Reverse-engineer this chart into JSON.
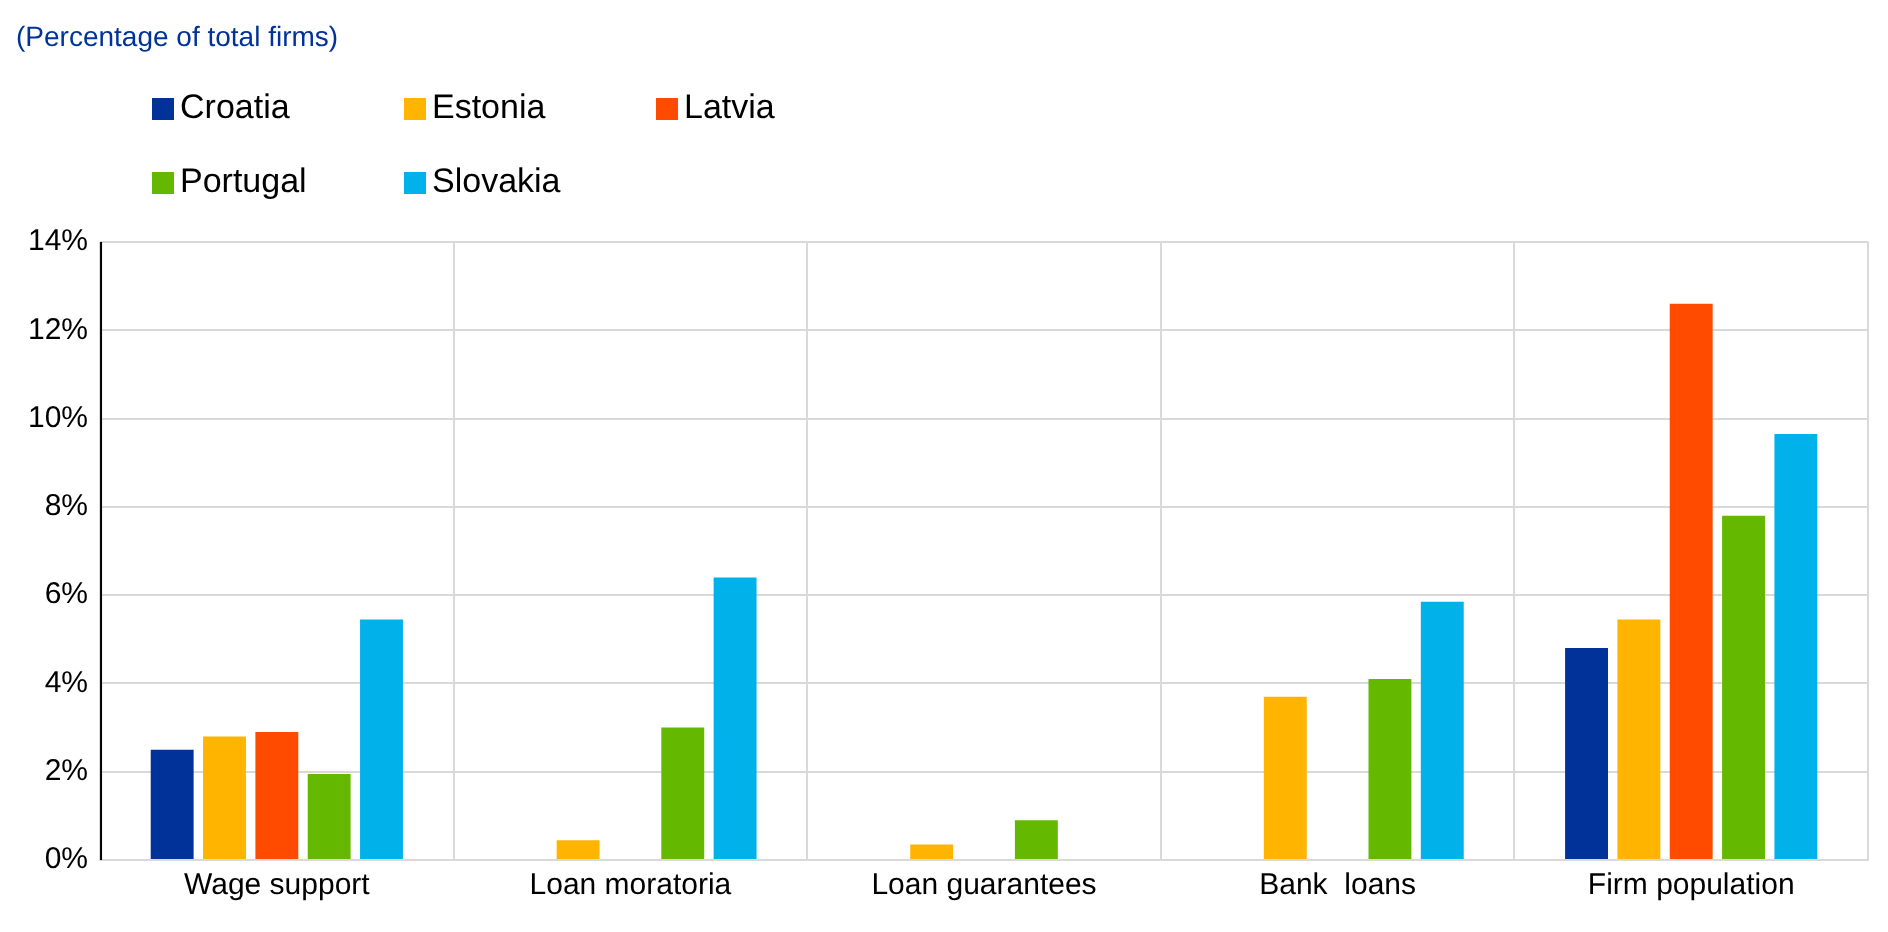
{
  "chart_data": {
    "type": "bar",
    "title": "(Percentage of total firms)",
    "categories": [
      "Wage support",
      "Loan moratoria",
      "Loan guarantees",
      "Bank  loans",
      "Firm population"
    ],
    "series": [
      {
        "name": "Croatia",
        "color": "#003299",
        "values": [
          2.5,
          null,
          null,
          null,
          4.8
        ]
      },
      {
        "name": "Estonia",
        "color": "#ffb400",
        "values": [
          2.8,
          0.45,
          0.35,
          3.7,
          5.45
        ]
      },
      {
        "name": "Latvia",
        "color": "#ff4b00",
        "values": [
          2.9,
          null,
          null,
          null,
          12.6
        ]
      },
      {
        "name": "Portugal",
        "color": "#65b800",
        "values": [
          1.95,
          3.0,
          0.9,
          4.1,
          7.8
        ]
      },
      {
        "name": "Slovakia",
        "color": "#00b1ea",
        "values": [
          5.45,
          6.4,
          null,
          5.85,
          9.65
        ]
      }
    ],
    "ylim": [
      0,
      14
    ],
    "yticks": [
      {
        "value": 0,
        "label": "0%"
      },
      {
        "value": 2,
        "label": "2%"
      },
      {
        "value": 4,
        "label": "4%"
      },
      {
        "value": 6,
        "label": "6%"
      },
      {
        "value": 8,
        "label": "8%"
      },
      {
        "value": 10,
        "label": "10%"
      },
      {
        "value": 12,
        "label": "12%"
      },
      {
        "value": 14,
        "label": "14%"
      }
    ],
    "grid": true,
    "legend": "top left"
  }
}
